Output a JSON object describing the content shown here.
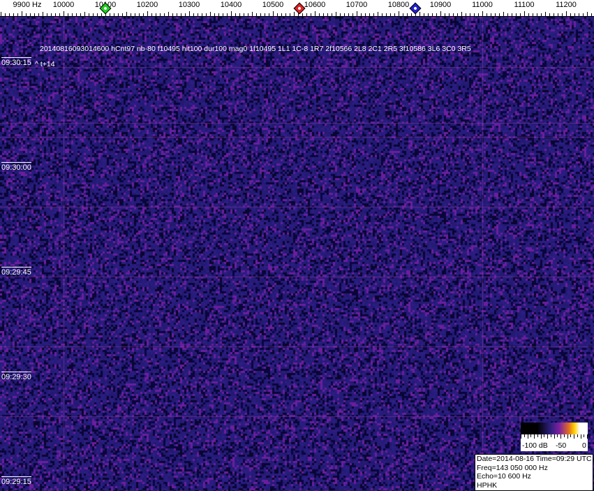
{
  "frequency_axis": {
    "labels": [
      "9900 Hz",
      "10000",
      "10100",
      "10200",
      "10300",
      "10400",
      "10500",
      "10600",
      "10700",
      "10800",
      "10900",
      "11000",
      "11100",
      "11200"
    ],
    "values_hz": [
      9900,
      10000,
      10100,
      10200,
      10300,
      10400,
      10500,
      10600,
      10700,
      10800,
      10900,
      11000,
      11100,
      11200
    ],
    "markers": [
      {
        "name": "green",
        "freq_hz": 10100,
        "color": "#22cc22"
      },
      {
        "name": "red",
        "freq_hz": 10563,
        "color": "#dd2222"
      },
      {
        "name": "blue",
        "freq_hz": 10840,
        "color": "#2222cc"
      }
    ]
  },
  "time_labels": [
    "09:30:15",
    "09:30:00",
    "09:29:45",
    "09:29:30",
    "09:29:15"
  ],
  "detection_info": "20140816093014600 hCnt97 nb-80 f10495 hit100 dur100 mag0 1f10495 1L1 1C-8 1R7 2f10566 2L8 2C1 2R5 3f10586 3L6 3C0 3R5",
  "time_offset": "^ t+14",
  "color_scale": {
    "min_label": "-100 dB",
    "mid_label": "-50",
    "max_label": "0"
  },
  "info_box": {
    "date_time": "Date=2014-08-16 Time=09:29 UTC",
    "freq": "Freq=143 050 000 Hz",
    "echo": "Echo=10 600 Hz",
    "station": "HPHK"
  },
  "colors": {
    "background": "#241f78",
    "gridline": "#8a3aa8"
  }
}
